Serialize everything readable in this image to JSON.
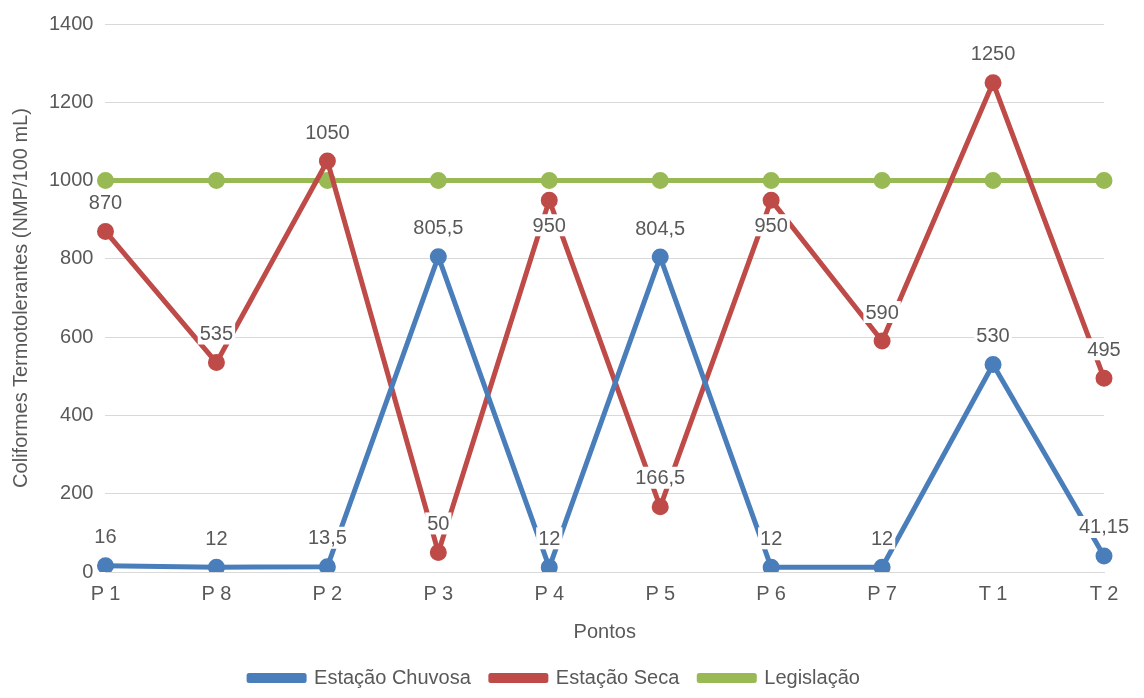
{
  "chart_data": {
    "type": "line",
    "xlabel": "Pontos",
    "ylabel": "Coliformes Termotolerantes (NMP/100 mL)",
    "categories": [
      "P 1",
      "P 8",
      "P 2",
      "P 3",
      "P 4",
      "P 5",
      "P 6",
      "P 7",
      "T 1",
      "T 2"
    ],
    "series": [
      {
        "name": "Estação Chuvosa",
        "color": "#4a7ebb",
        "values": [
          16,
          12,
          13.5,
          805.5,
          12,
          804.5,
          12,
          12,
          530,
          41.15
        ],
        "value_labels": [
          "16",
          "12",
          "13,5",
          "805,5",
          "12",
          "804,5",
          "12",
          "12",
          "530",
          "41,15"
        ]
      },
      {
        "name": "Estação Seca",
        "color": "#be4b48",
        "values": [
          870,
          535,
          1050,
          50,
          950,
          166.5,
          950,
          590,
          1250,
          495
        ],
        "value_labels": [
          "870",
          "535",
          "1050",
          "50",
          "950",
          "166,5",
          "950",
          "590",
          "1250",
          "495"
        ]
      },
      {
        "name": "Legislação",
        "color": "#98b954",
        "values": [
          1000,
          1000,
          1000,
          1000,
          1000,
          1000,
          1000,
          1000,
          1000,
          1000
        ]
      }
    ],
    "ylim": [
      0,
      1400
    ],
    "yticks": [
      0,
      200,
      400,
      600,
      800,
      1000,
      1200,
      1400
    ],
    "grid": "y",
    "legend": "bottom",
    "marker": "circle",
    "line_style": "solid"
  }
}
